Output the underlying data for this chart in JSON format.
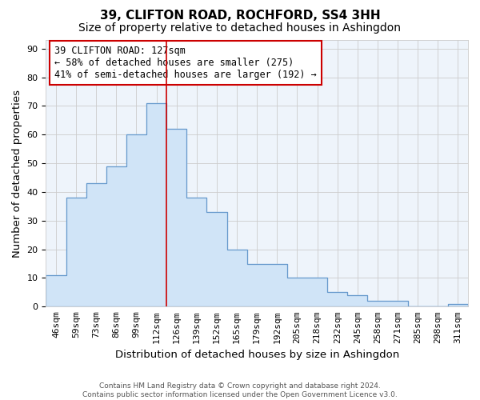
{
  "title": "39, CLIFTON ROAD, ROCHFORD, SS4 3HH",
  "subtitle": "Size of property relative to detached houses in Ashingdon",
  "xlabel": "Distribution of detached houses by size in Ashingdon",
  "ylabel": "Number of detached properties",
  "categories": [
    "46sqm",
    "59sqm",
    "73sqm",
    "86sqm",
    "99sqm",
    "112sqm",
    "126sqm",
    "139sqm",
    "152sqm",
    "165sqm",
    "179sqm",
    "192sqm",
    "205sqm",
    "218sqm",
    "232sqm",
    "245sqm",
    "258sqm",
    "271sqm",
    "285sqm",
    "298sqm",
    "311sqm"
  ],
  "values": [
    11,
    38,
    43,
    49,
    60,
    71,
    62,
    38,
    33,
    20,
    15,
    15,
    10,
    10,
    5,
    4,
    2,
    2,
    0,
    0,
    1
  ],
  "bar_color": "#d0e4f7",
  "bar_edge_color": "#6699cc",
  "vline_x_index": 6,
  "vline_color": "#cc0000",
  "annotation_text": "39 CLIFTON ROAD: 127sqm\n← 58% of detached houses are smaller (275)\n41% of semi-detached houses are larger (192) →",
  "annotation_box_color": "#ffffff",
  "annotation_box_edge_color": "#cc0000",
  "ylim": [
    0,
    93
  ],
  "yticks": [
    0,
    10,
    20,
    30,
    40,
    50,
    60,
    70,
    80,
    90
  ],
  "footnote": "Contains HM Land Registry data © Crown copyright and database right 2024.\nContains public sector information licensed under the Open Government Licence v3.0.",
  "bg_color": "#ffffff",
  "plot_bg_color": "#eef4fb",
  "grid_color": "#cccccc",
  "title_fontsize": 11,
  "subtitle_fontsize": 10,
  "tick_fontsize": 8,
  "label_fontsize": 9.5
}
